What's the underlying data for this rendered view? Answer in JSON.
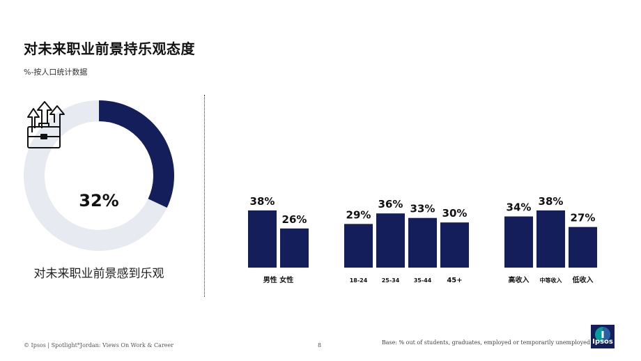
{
  "title": "对未来职业前景持乐观态度",
  "subtitle": "%-按人口统计数据",
  "colors": {
    "primary": "#141e5a",
    "track": "#e7eaf0",
    "logo_teal": "#009d9a"
  },
  "donut": {
    "value": 32,
    "value_label": "32%",
    "caption": "对未来职业前景感到乐观",
    "icon": "briefcase-arrows-icon"
  },
  "chart_data": {
    "type": "bar",
    "ylim": [
      0,
      40
    ],
    "groups": [
      {
        "name": "gender",
        "categories": [
          "男性",
          "女性"
        ],
        "category_labels": [
          "男性 女性"
        ],
        "values": [
          38,
          26
        ],
        "labels": [
          "38%",
          "26%"
        ]
      },
      {
        "name": "age",
        "categories": [
          "18-24",
          "25-34",
          "35-44",
          "45+"
        ],
        "values": [
          29,
          36,
          33,
          30
        ],
        "labels": [
          "29%",
          "36%",
          "33%",
          "30%"
        ]
      },
      {
        "name": "income",
        "categories": [
          "高收入",
          "中等收入",
          "低收入"
        ],
        "values": [
          34,
          38,
          27
        ],
        "labels": [
          "34%",
          "38%",
          "27%"
        ]
      }
    ]
  },
  "footer": {
    "left": "© Ipsos | Spotlight*Jordan: Views On Work & Career",
    "page": "8",
    "base": "Base: % out of students, graduates, employed or temporarily unemployed"
  },
  "logo": {
    "text": "Ipsos"
  }
}
